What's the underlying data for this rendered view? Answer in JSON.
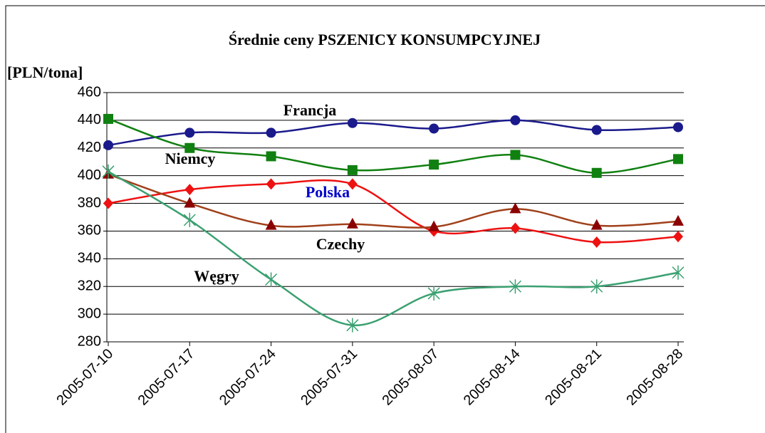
{
  "chart_data": {
    "type": "line",
    "title": "Średnie ceny PSZENICY KONSUMPCYJNEJ",
    "y_label": "[PLN/tona]",
    "categories": [
      "2005-07-10",
      "2005-07-17",
      "2005-07-24",
      "2005-07-31",
      "2005-08-07",
      "2005-08-14",
      "2005-08-21",
      "2005-08-28"
    ],
    "ylim": [
      280,
      460
    ],
    "yticks": [
      280,
      300,
      320,
      340,
      360,
      380,
      400,
      420,
      440,
      460
    ],
    "grid": true,
    "legend": false,
    "series": [
      {
        "name": "Francja",
        "color": "#1a1a8c",
        "marker": "circle",
        "values": [
          422,
          431,
          431,
          438,
          434,
          440,
          433,
          435
        ]
      },
      {
        "name": "Niemcy",
        "color": "#108010",
        "marker": "square",
        "values": [
          441,
          420,
          414,
          404,
          408,
          415,
          402,
          412
        ]
      },
      {
        "name": "Polska",
        "color": "#ee1111",
        "marker": "diamond",
        "values": [
          380,
          390,
          394,
          394,
          360,
          362,
          352,
          356
        ]
      },
      {
        "name": "Czechy",
        "color": "#a0401a",
        "marker": "triangle",
        "values": [
          401,
          380,
          364,
          365,
          363,
          376,
          364,
          367
        ]
      },
      {
        "name": "Węgry",
        "color": "#3aa070",
        "marker": "star",
        "values": [
          403,
          368,
          325,
          292,
          315,
          320,
          320,
          330
        ]
      }
    ]
  }
}
